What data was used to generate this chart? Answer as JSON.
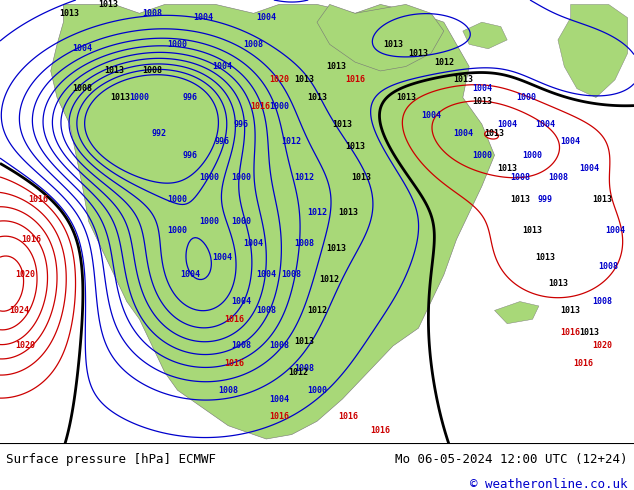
{
  "title_left": "Surface pressure [hPa] ECMWF",
  "title_right": "Mo 06-05-2024 12:00 UTC (12+24)",
  "copyright": "© weatheronline.co.uk",
  "bg_color": "#c8c8c8",
  "map_color": "#a8d878",
  "ocean_color": "#c8c8c8",
  "footer_bg": "#ffffff",
  "text_color_black": "#000000",
  "text_color_blue": "#0000cc",
  "text_color_red": "#cc0000",
  "contour_blue": "#0000cc",
  "contour_red": "#cc0000",
  "contour_black": "#000000",
  "font_size_footer": 9,
  "font_size_labels": 7
}
